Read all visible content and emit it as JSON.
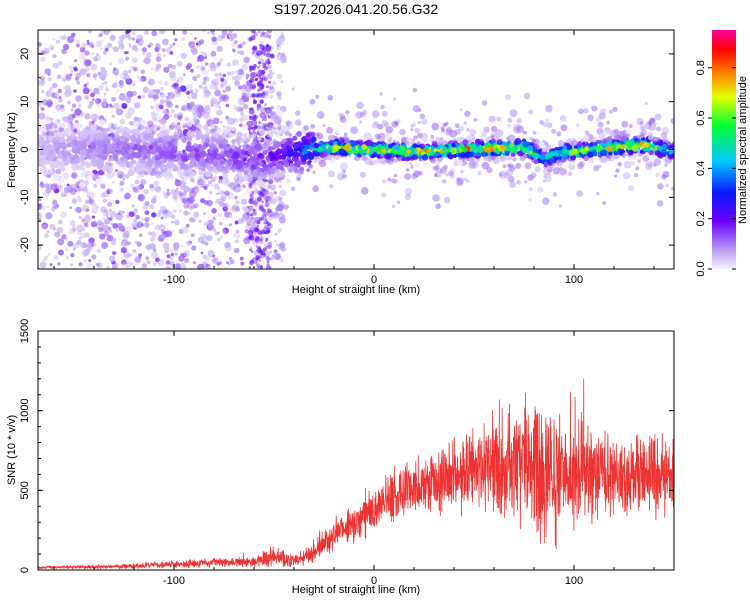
{
  "title": "S197.2026.041.20.56.G32",
  "chart_data": [
    {
      "type": "heatmap",
      "xlabel": "Height of straight line (km)",
      "ylabel": "Frequency (Hz)",
      "xlim": [
        -168,
        150
      ],
      "ylim": [
        -25,
        25
      ],
      "xticks": [
        -100,
        0,
        100
      ],
      "yticks": [
        -20,
        -10,
        0,
        10,
        20
      ],
      "colorbar": {
        "label": "Normalized spectral amplitude",
        "range": [
          0,
          0.95
        ],
        "ticks": [
          0.0,
          0.2,
          0.4,
          0.6,
          0.8
        ],
        "tick_labels": [
          "0.0",
          "0.2",
          "0.4",
          "0.6",
          "0.8"
        ]
      },
      "ridge_description": "Signal concentrated near 0 Hz; diffuse low-amplitude scatter below -50 km; narrow high-amplitude band from about -25 km to 150 km",
      "ridge": {
        "x": [
          -168,
          -120,
          -80,
          -60,
          -45,
          -30,
          -20,
          0,
          20,
          50,
          75,
          85,
          95,
          110,
          135,
          150
        ],
        "frequency_hz": [
          0,
          0,
          -1,
          -2,
          -1,
          0,
          0.5,
          0,
          -0.5,
          0,
          0.5,
          -2,
          -0.5,
          0,
          1,
          -0.5
        ],
        "amplitude": [
          0.08,
          0.15,
          0.18,
          0.2,
          0.25,
          0.5,
          0.8,
          0.85,
          0.85,
          0.9,
          0.85,
          0.6,
          0.75,
          0.8,
          0.9,
          0.6
        ]
      }
    },
    {
      "type": "line",
      "xlabel": "Height of straight line (km)",
      "ylabel": "SNR (10 * v/v)",
      "xlim": [
        -168,
        150
      ],
      "ylim": [
        0,
        1500
      ],
      "xticks": [
        -100,
        0,
        100
      ],
      "yticks": [
        0,
        500,
        1000,
        1500
      ],
      "series": [
        {
          "name": "SNR",
          "color": "#ee3333",
          "envelope_x": [
            -168,
            -140,
            -120,
            -100,
            -80,
            -60,
            -52,
            -40,
            -30,
            -20,
            -10,
            0,
            10,
            20,
            30,
            40,
            50,
            60,
            70,
            80,
            85,
            90,
            95,
            100,
            110,
            120,
            130,
            140,
            150
          ],
          "envelope_mean": [
            15,
            20,
            25,
            35,
            45,
            50,
            80,
            60,
            110,
            220,
            300,
            380,
            460,
            520,
            560,
            600,
            620,
            640,
            660,
            660,
            650,
            640,
            630,
            620,
            610,
            600,
            590,
            600,
            590
          ],
          "envelope_spread": [
            10,
            15,
            20,
            30,
            35,
            40,
            80,
            50,
            80,
            120,
            150,
            180,
            200,
            220,
            250,
            280,
            320,
            380,
            450,
            600,
            650,
            550,
            480,
            400,
            350,
            320,
            300,
            300,
            280
          ]
        }
      ]
    }
  ]
}
